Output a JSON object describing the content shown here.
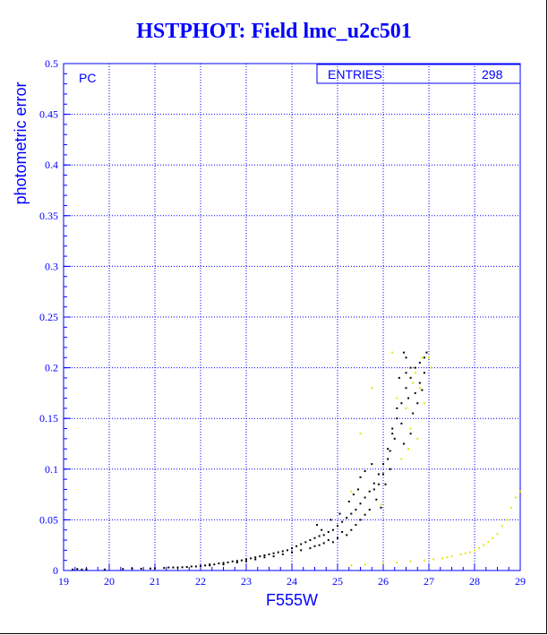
{
  "chart_data": {
    "type": "scatter",
    "title": "HSTPHOT: Field lmc_u2c501",
    "xlabel": "F555W",
    "ylabel": "photometric error",
    "xlim": [
      19,
      29
    ],
    "ylim": [
      0,
      0.5
    ],
    "xticks": [
      "19",
      "20",
      "21",
      "22",
      "23",
      "24",
      "25",
      "26",
      "27",
      "28",
      "29"
    ],
    "yticks": [
      "0",
      "0.05",
      "0.1",
      "0.15",
      "0.2",
      "0.25",
      "0.3",
      "0.35",
      "0.4",
      "0.45",
      "0.5"
    ],
    "grid": true,
    "panel_label": "PC",
    "stats_box": {
      "label": "ENTRIES",
      "value": "298"
    },
    "series": [
      {
        "color": "#000000",
        "points": [
          [
            19.2,
            0.001
          ],
          [
            19.3,
            0.0015
          ],
          [
            19.4,
            0.001
          ],
          [
            19.5,
            0.0012
          ],
          [
            19.9,
            0.001
          ],
          [
            20.3,
            0.0015
          ],
          [
            20.5,
            0.002
          ],
          [
            20.7,
            0.0018
          ],
          [
            20.9,
            0.002
          ],
          [
            21.0,
            0.0022
          ],
          [
            21.2,
            0.0025
          ],
          [
            21.3,
            0.003
          ],
          [
            21.5,
            0.003
          ],
          [
            21.6,
            0.0032
          ],
          [
            21.7,
            0.0035
          ],
          [
            21.9,
            0.004
          ],
          [
            22.0,
            0.0045
          ],
          [
            22.1,
            0.005
          ],
          [
            22.2,
            0.006
          ],
          [
            22.3,
            0.006
          ],
          [
            22.4,
            0.007
          ],
          [
            22.5,
            0.0075
          ],
          [
            22.6,
            0.008
          ],
          [
            22.7,
            0.009
          ],
          [
            22.8,
            0.0095
          ],
          [
            22.9,
            0.01
          ],
          [
            23.0,
            0.011
          ],
          [
            23.1,
            0.012
          ],
          [
            23.2,
            0.013
          ],
          [
            23.3,
            0.014
          ],
          [
            23.4,
            0.015
          ],
          [
            23.5,
            0.016
          ],
          [
            23.6,
            0.017
          ],
          [
            23.7,
            0.018
          ],
          [
            23.8,
            0.019
          ],
          [
            23.9,
            0.02
          ],
          [
            24.0,
            0.022
          ],
          [
            24.1,
            0.024
          ],
          [
            24.2,
            0.026
          ],
          [
            24.3,
            0.028
          ],
          [
            24.4,
            0.03
          ],
          [
            24.5,
            0.032
          ],
          [
            24.6,
            0.034
          ],
          [
            24.7,
            0.035
          ],
          [
            24.8,
            0.038
          ],
          [
            24.9,
            0.04
          ],
          [
            25.0,
            0.044
          ],
          [
            25.1,
            0.048
          ],
          [
            25.2,
            0.052
          ],
          [
            25.3,
            0.056
          ],
          [
            25.4,
            0.06
          ],
          [
            25.5,
            0.066
          ],
          [
            25.6,
            0.072
          ],
          [
            25.7,
            0.078
          ],
          [
            25.8,
            0.086
          ],
          [
            25.9,
            0.095
          ],
          [
            26.0,
            0.105
          ],
          [
            26.1,
            0.12
          ],
          [
            26.2,
            0.135
          ],
          [
            26.3,
            0.15
          ],
          [
            26.4,
            0.165
          ],
          [
            26.5,
            0.18
          ],
          [
            26.6,
            0.19
          ],
          [
            26.7,
            0.2
          ],
          [
            26.8,
            0.205
          ],
          [
            26.9,
            0.21
          ],
          [
            26.95,
            0.215
          ],
          [
            26.7,
            0.175
          ],
          [
            26.8,
            0.185
          ],
          [
            26.6,
            0.2
          ],
          [
            26.5,
            0.21
          ],
          [
            26.45,
            0.215
          ],
          [
            26.35,
            0.19
          ],
          [
            26.3,
            0.16
          ],
          [
            26.2,
            0.14
          ],
          [
            26.1,
            0.11
          ],
          [
            26.0,
            0.095
          ],
          [
            25.9,
            0.085
          ],
          [
            25.8,
            0.08
          ],
          [
            25.7,
            0.06
          ],
          [
            25.6,
            0.055
          ],
          [
            25.5,
            0.05
          ],
          [
            25.4,
            0.045
          ],
          [
            25.3,
            0.04
          ],
          [
            25.2,
            0.035
          ],
          [
            25.1,
            0.038
          ],
          [
            25.0,
            0.032
          ],
          [
            24.9,
            0.028
          ],
          [
            24.8,
            0.03
          ],
          [
            24.7,
            0.027
          ],
          [
            24.6,
            0.025
          ],
          [
            24.5,
            0.024
          ],
          [
            24.4,
            0.022
          ],
          [
            24.2,
            0.02
          ],
          [
            24.0,
            0.018
          ],
          [
            23.8,
            0.016
          ],
          [
            23.6,
            0.014
          ],
          [
            23.4,
            0.013
          ],
          [
            23.2,
            0.011
          ],
          [
            23.0,
            0.009
          ],
          [
            22.8,
            0.008
          ],
          [
            22.5,
            0.006
          ],
          [
            22.2,
            0.005
          ],
          [
            21.8,
            0.004
          ],
          [
            21.4,
            0.003
          ],
          [
            25.5,
            0.092
          ],
          [
            25.6,
            0.098
          ],
          [
            25.75,
            0.105
          ],
          [
            25.85,
            0.07
          ],
          [
            25.95,
            0.062
          ],
          [
            26.15,
            0.118
          ],
          [
            26.25,
            0.13
          ],
          [
            26.4,
            0.145
          ],
          [
            26.55,
            0.17
          ],
          [
            26.65,
            0.155
          ],
          [
            26.75,
            0.165
          ],
          [
            26.85,
            0.178
          ],
          [
            26.9,
            0.195
          ],
          [
            26.6,
            0.135
          ],
          [
            26.45,
            0.125
          ],
          [
            24.55,
            0.045
          ],
          [
            24.65,
            0.04
          ],
          [
            24.85,
            0.05
          ],
          [
            25.05,
            0.056
          ],
          [
            25.25,
            0.068
          ],
          [
            25.35,
            0.075
          ],
          [
            25.45,
            0.08
          ],
          [
            26.05,
            0.085
          ],
          [
            26.15,
            0.1
          ],
          [
            26.5,
            0.195
          ]
        ]
      },
      {
        "color": "#e6e600",
        "points": [
          [
            25.3,
            0.005
          ],
          [
            25.6,
            0.006
          ],
          [
            26.0,
            0.007
          ],
          [
            26.3,
            0.008
          ],
          [
            26.6,
            0.009
          ],
          [
            26.9,
            0.01
          ],
          [
            27.1,
            0.011
          ],
          [
            27.3,
            0.012
          ],
          [
            27.5,
            0.014
          ],
          [
            27.7,
            0.016
          ],
          [
            27.9,
            0.018
          ],
          [
            28.1,
            0.022
          ],
          [
            28.3,
            0.028
          ],
          [
            28.5,
            0.036
          ],
          [
            28.7,
            0.05
          ],
          [
            28.8,
            0.062
          ],
          [
            28.9,
            0.072
          ],
          [
            29.0,
            0.078
          ],
          [
            27.4,
            0.013
          ],
          [
            27.8,
            0.017
          ],
          [
            28.0,
            0.02
          ],
          [
            28.2,
            0.025
          ],
          [
            28.4,
            0.032
          ],
          [
            28.6,
            0.044
          ],
          [
            25.3,
            0.078
          ],
          [
            25.5,
            0.135
          ],
          [
            25.75,
            0.18
          ],
          [
            26.2,
            0.215
          ],
          [
            26.3,
            0.17
          ],
          [
            26.5,
            0.16
          ],
          [
            26.6,
            0.14
          ],
          [
            26.7,
            0.195
          ],
          [
            26.8,
            0.18
          ],
          [
            26.9,
            0.165
          ],
          [
            27.0,
            0.21
          ],
          [
            27.05,
            0.2
          ],
          [
            26.75,
            0.13
          ],
          [
            26.55,
            0.12
          ],
          [
            26.4,
            0.11
          ],
          [
            25.95,
            0.065
          ],
          [
            26.85,
            0.21
          ],
          [
            26.65,
            0.185
          ]
        ]
      }
    ]
  }
}
